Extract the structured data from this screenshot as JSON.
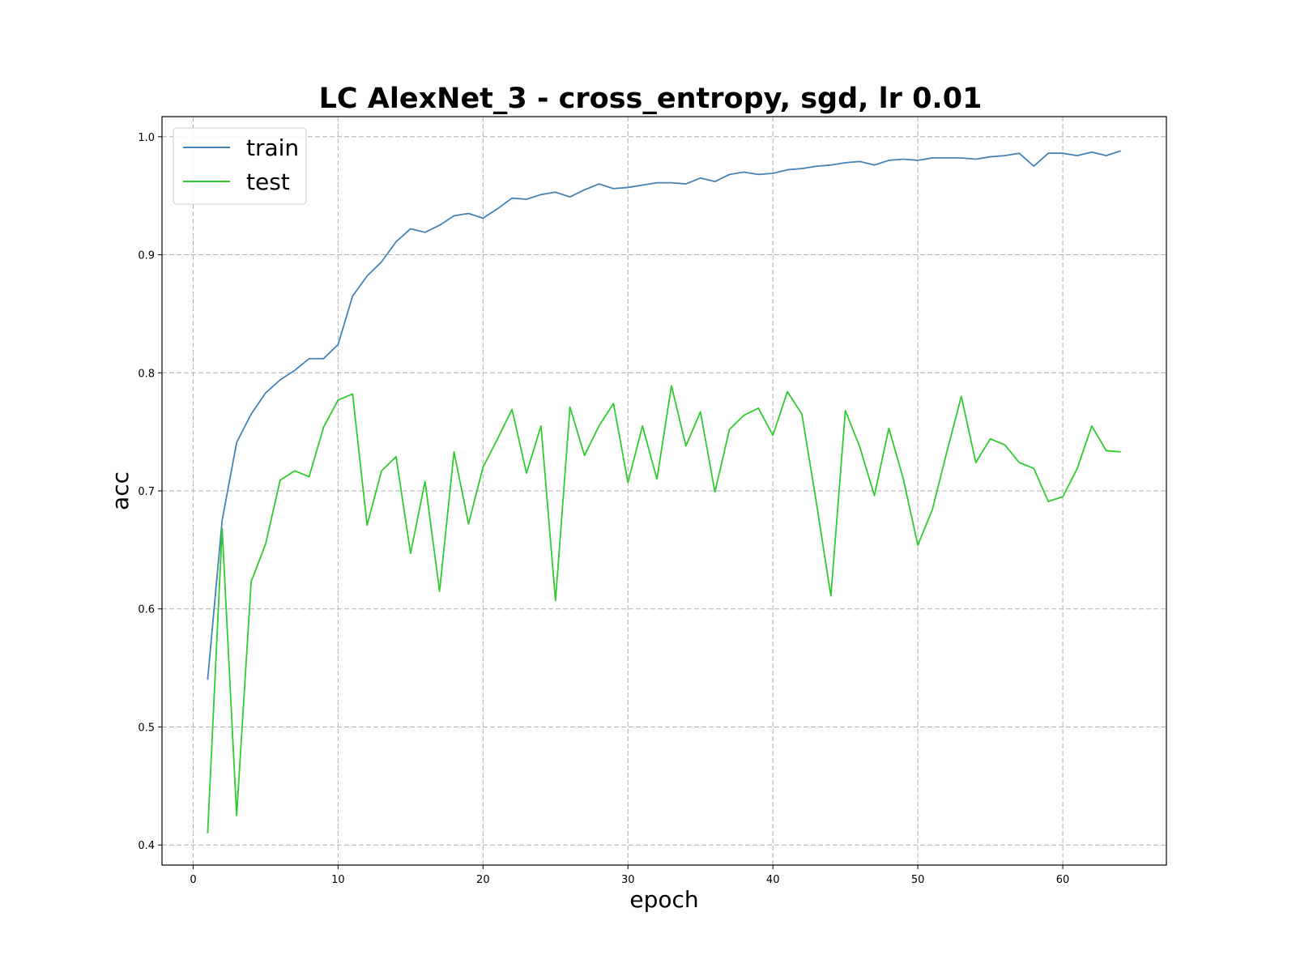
{
  "chart_data": {
    "type": "line",
    "title": "LC AlexNet_3 - cross_entropy, sgd, lr 0.01",
    "xlabel": "epoch",
    "ylabel": "acc",
    "xlim": [
      -2.15,
      67.15
    ],
    "ylim": [
      0.383,
      1.017
    ],
    "xticks": [
      0,
      10,
      20,
      30,
      40,
      50,
      60
    ],
    "yticks": [
      0.4,
      0.5,
      0.6,
      0.7,
      0.8,
      0.9,
      1.0
    ],
    "grid": true,
    "legend_position": "upper-left",
    "x": [
      1,
      2,
      3,
      4,
      5,
      6,
      7,
      8,
      9,
      10,
      11,
      12,
      13,
      14,
      15,
      16,
      17,
      18,
      19,
      20,
      21,
      22,
      23,
      24,
      25,
      26,
      27,
      28,
      29,
      30,
      31,
      32,
      33,
      34,
      35,
      36,
      37,
      38,
      39,
      40,
      41,
      42,
      43,
      44,
      45,
      46,
      47,
      48,
      49,
      50,
      51,
      52,
      53,
      54,
      55,
      56,
      57,
      58,
      59,
      60,
      61,
      62,
      63,
      64
    ],
    "series": [
      {
        "name": "train",
        "color": "#4682b4",
        "values": [
          0.54,
          0.675,
          0.741,
          0.765,
          0.783,
          0.794,
          0.802,
          0.812,
          0.812,
          0.824,
          0.865,
          0.882,
          0.894,
          0.911,
          0.922,
          0.919,
          0.925,
          0.933,
          0.935,
          0.931,
          0.939,
          0.948,
          0.947,
          0.951,
          0.953,
          0.949,
          0.955,
          0.96,
          0.956,
          0.957,
          0.959,
          0.961,
          0.961,
          0.96,
          0.965,
          0.962,
          0.968,
          0.97,
          0.968,
          0.969,
          0.972,
          0.973,
          0.975,
          0.976,
          0.978,
          0.979,
          0.976,
          0.98,
          0.981,
          0.98,
          0.982,
          0.982,
          0.982,
          0.981,
          0.983,
          0.984,
          0.986,
          0.975,
          0.986,
          0.986,
          0.984,
          0.987,
          0.984,
          0.988
        ]
      },
      {
        "name": "test",
        "color": "#2ecc2e",
        "values": [
          0.41,
          0.668,
          0.425,
          0.623,
          0.655,
          0.709,
          0.717,
          0.712,
          0.754,
          0.777,
          0.782,
          0.671,
          0.717,
          0.729,
          0.647,
          0.708,
          0.615,
          0.733,
          0.672,
          0.72,
          0.744,
          0.769,
          0.715,
          0.755,
          0.607,
          0.771,
          0.73,
          0.755,
          0.774,
          0.707,
          0.755,
          0.71,
          0.789,
          0.738,
          0.767,
          0.699,
          0.752,
          0.764,
          0.77,
          0.747,
          0.784,
          0.765,
          0.69,
          0.611,
          0.768,
          0.737,
          0.696,
          0.753,
          0.71,
          0.654,
          0.684,
          0.733,
          0.78,
          0.724,
          0.744,
          0.739,
          0.724,
          0.719,
          0.691,
          0.695,
          0.719,
          0.755,
          0.734,
          0.733
        ]
      }
    ]
  }
}
